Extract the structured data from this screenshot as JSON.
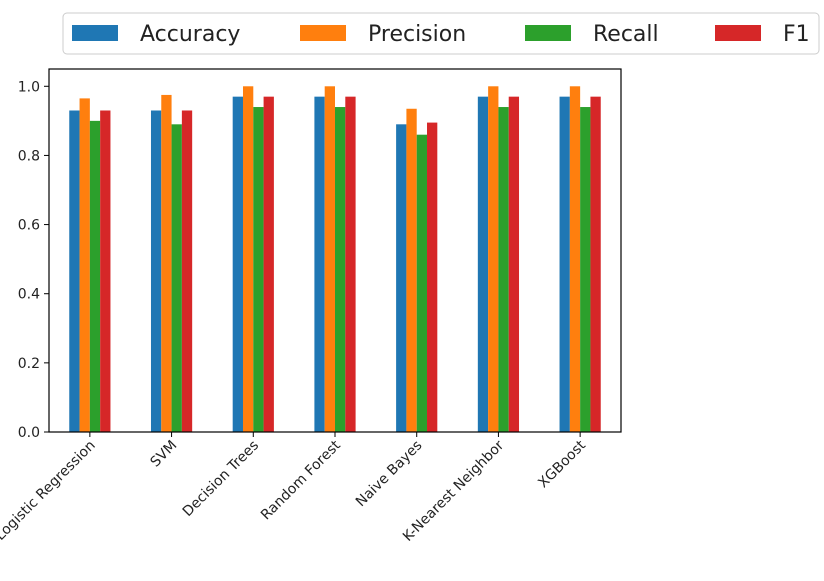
{
  "chart_data": {
    "type": "bar",
    "title": "",
    "xlabel": "",
    "ylabel": "",
    "ylim": [
      0,
      1.05
    ],
    "yticks": [
      "0.0",
      "0.2",
      "0.4",
      "0.6",
      "0.8",
      "1.0"
    ],
    "legend_position": "top",
    "grid": false,
    "categories": [
      "Logistic Regression",
      "SVM",
      "Decision Trees",
      "Random Forest",
      "Naive Bayes",
      "K-Nearest Neighbor",
      "XGBoost"
    ],
    "series": [
      {
        "name": "Accuracy",
        "color": "#1f77b4",
        "values": [
          0.93,
          0.93,
          0.97,
          0.97,
          0.89,
          0.97,
          0.97
        ]
      },
      {
        "name": "Precision",
        "color": "#ff7f0e",
        "values": [
          0.965,
          0.975,
          1.0,
          1.0,
          0.935,
          1.0,
          1.0
        ]
      },
      {
        "name": "Recall",
        "color": "#2ca02c",
        "values": [
          0.9,
          0.89,
          0.94,
          0.94,
          0.86,
          0.94,
          0.94
        ]
      },
      {
        "name": "F1",
        "color": "#d62728",
        "values": [
          0.93,
          0.93,
          0.97,
          0.97,
          0.895,
          0.97,
          0.97
        ]
      }
    ]
  }
}
